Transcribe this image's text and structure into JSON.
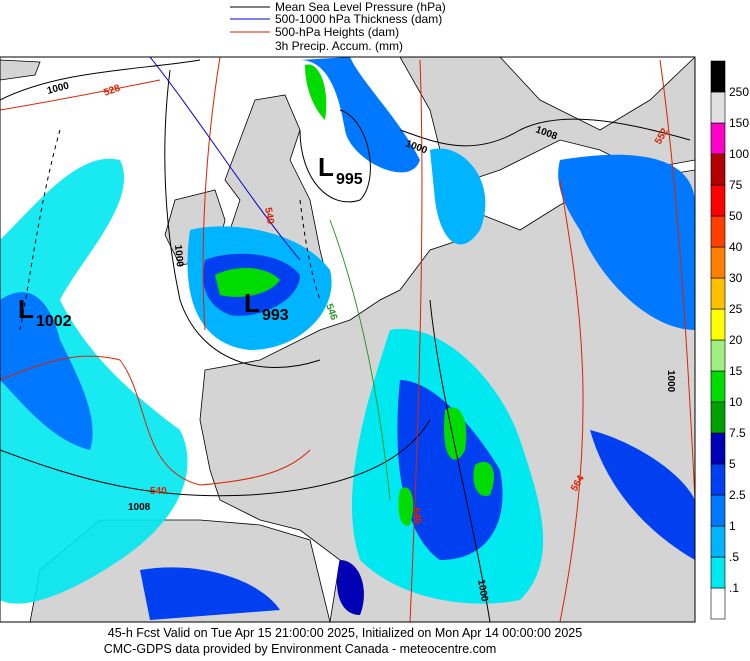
{
  "legend": [
    "Mean Sea Level Pressure (hPa)",
    "500-1000 hPa Thickness (dam)",
    "500-hPa Heights (dam)",
    "3h Precip. Accum. (mm)"
  ],
  "colorbar": {
    "levels": [
      ".1",
      ".5",
      "1",
      "2.5",
      "5",
      "7.5",
      "10",
      "15",
      "20",
      "25",
      "30",
      "40",
      "50",
      "75",
      "100",
      "150",
      "250"
    ],
    "colors": [
      "#ffffff",
      "#00e8f0",
      "#00b4ff",
      "#0078ff",
      "#0040f0",
      "#0000b4",
      "#00a000",
      "#00dc00",
      "#a0f080",
      "#ffff00",
      "#ffc000",
      "#ff8000",
      "#ff4000",
      "#ff0000",
      "#b40000",
      "#ff00c8",
      "#e0e0e0",
      "#000000"
    ]
  },
  "lows": [
    {
      "letter": "L",
      "value": "1002"
    },
    {
      "letter": "L",
      "value": "995"
    },
    {
      "letter": "L",
      "value": "993"
    }
  ],
  "map_labels": [
    "1000",
    "528",
    "540",
    "1000",
    "1008",
    "540",
    "1008",
    "1000",
    "552",
    "1000",
    "564",
    "546",
    "1000",
    "546"
  ],
  "footer": [
    "45-h Fcst Valid on Tue Apr 15 21:00:00 2025, Initialized on Mon Apr 14 00:00:00 2025",
    "CMC-GDPS data provided by Environment Canada - meteocentre.com"
  ]
}
